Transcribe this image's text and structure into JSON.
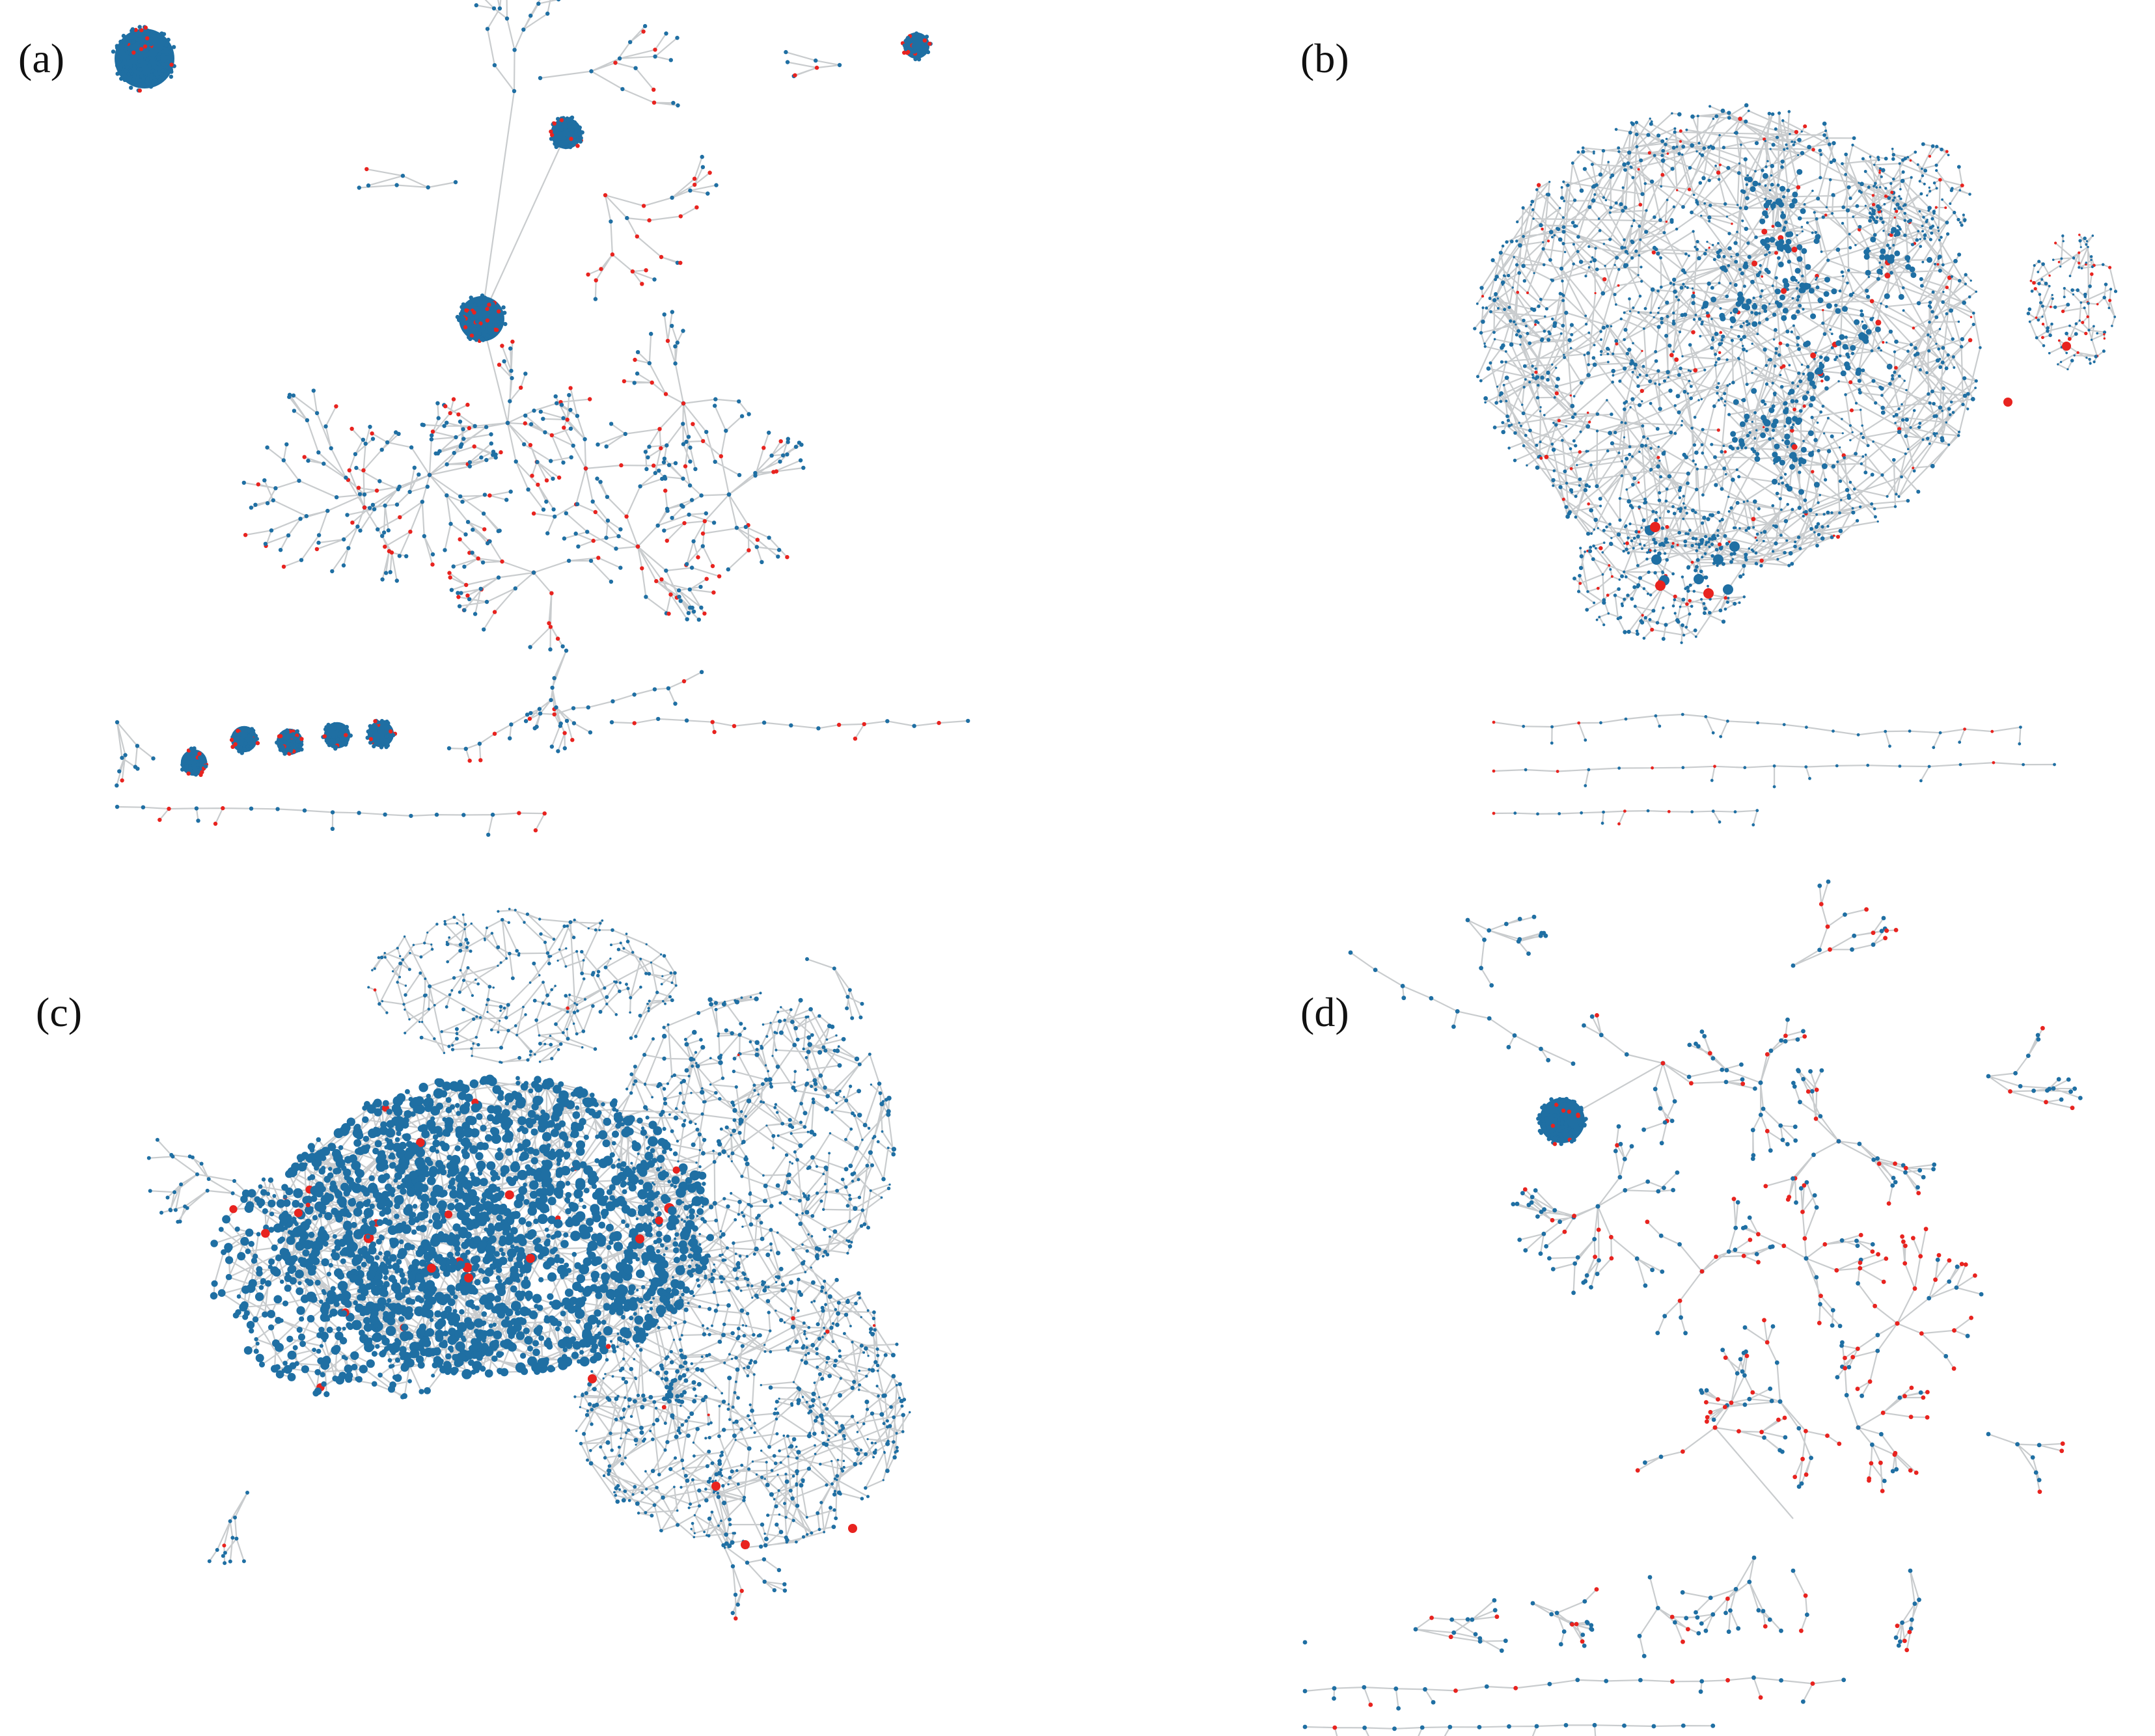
{
  "colors": {
    "node_blue": "#1f6fa3",
    "node_red": "#e8231f",
    "edge_gray": "#c9ccce",
    "background": "#ffffff"
  },
  "panels": [
    {
      "id": "a",
      "label": "(a)"
    },
    {
      "id": "b",
      "label": "(b)"
    },
    {
      "id": "c",
      "label": "(c)"
    },
    {
      "id": "d",
      "label": "(d)"
    }
  ]
}
